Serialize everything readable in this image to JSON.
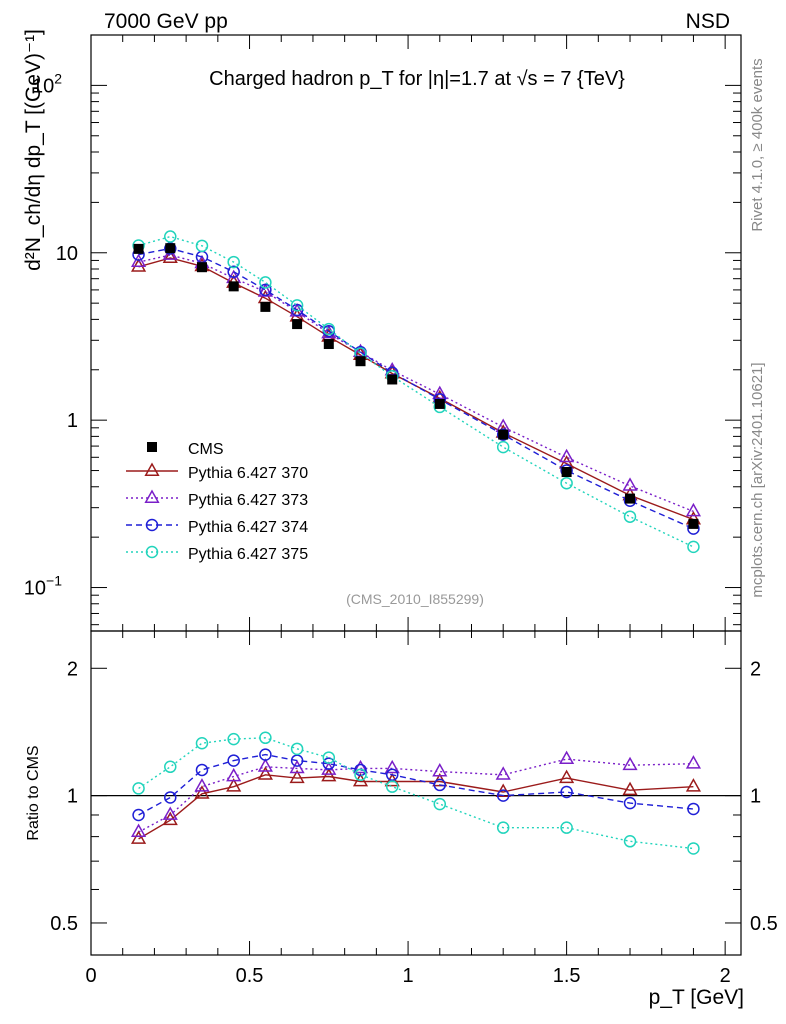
{
  "header": {
    "left": "7000 GeV pp",
    "right": "NSD",
    "side_top": "Rivet 4.1.0, ≥ 400k events",
    "side_bottom": "mcplots.cern.ch [arXiv:2401.10621]"
  },
  "chart_data": [
    {
      "type": "line",
      "panel": "main",
      "title": "Charged hadron p_T for |η|=1.7 at √s = 7 {TeV}",
      "watermark": "(CMS_2010_I855299)",
      "ylabel": "d²N_ch/dη dp_T [(GeV)⁻¹]",
      "yscale": "log",
      "ylim": [
        0.055,
        200
      ],
      "xlim": [
        0,
        2.05
      ],
      "yticks": [
        {
          "value": 0.1,
          "base": "10",
          "exp": "−1"
        },
        {
          "value": 1,
          "base": "1",
          "exp": ""
        },
        {
          "value": 10,
          "base": "10",
          "exp": ""
        },
        {
          "value": 100,
          "base": "10",
          "exp": "2"
        }
      ],
      "x": [
        0.15,
        0.25,
        0.35,
        0.45,
        0.55,
        0.65,
        0.75,
        0.85,
        0.95,
        1.1,
        1.3,
        1.5,
        1.7,
        1.9
      ],
      "series": [
        {
          "name": "CMS",
          "style": "data",
          "color": "#000000",
          "values": [
            10.55,
            10.65,
            8.2,
            6.3,
            4.75,
            3.75,
            2.85,
            2.25,
            1.75,
            1.25,
            0.82,
            0.49,
            0.34,
            0.24
          ]
        },
        {
          "name": "Pythia 6.427 370",
          "style": "solid",
          "marker": "triangle",
          "color": "#9b1b1b",
          "values": [
            8.25,
            9.3,
            8.3,
            6.6,
            5.35,
            4.15,
            3.15,
            2.45,
            1.9,
            1.35,
            0.84,
            0.55,
            0.355,
            0.255
          ]
        },
        {
          "name": "Pythia 6.427 373",
          "style": "dotted",
          "marker": "triangle",
          "color": "#7a1fc8",
          "values": [
            8.8,
            9.7,
            8.65,
            7.05,
            5.85,
            4.45,
            3.3,
            2.55,
            1.98,
            1.43,
            0.91,
            0.6,
            0.405,
            0.285
          ]
        },
        {
          "name": "Pythia 6.427 374",
          "style": "dashed",
          "marker": "circle",
          "color": "#1f1fd6",
          "values": [
            9.75,
            10.6,
            9.45,
            7.7,
            6.0,
            4.55,
            3.4,
            2.55,
            1.92,
            1.33,
            0.82,
            0.5,
            0.33,
            0.225
          ]
        },
        {
          "name": "Pythia 6.427 375",
          "style": "dotted",
          "marker": "circle",
          "color": "#22d4bc",
          "values": [
            11.05,
            12.5,
            11.0,
            8.8,
            6.65,
            4.85,
            3.5,
            2.5,
            1.83,
            1.2,
            0.69,
            0.42,
            0.265,
            0.175
          ]
        }
      ]
    },
    {
      "type": "line",
      "panel": "ratio",
      "xlabel": "p_T [GeV]",
      "ylabel": "Ratio to CMS",
      "ylim": [
        0.42,
        2.45
      ],
      "xlim": [
        0,
        2.05
      ],
      "yticks": [
        0.5,
        1,
        2
      ],
      "xticks": [
        0,
        0.5,
        1,
        1.5,
        2
      ],
      "reference": 1,
      "x": [
        0.15,
        0.25,
        0.35,
        0.45,
        0.55,
        0.65,
        0.75,
        0.85,
        0.95,
        1.1,
        1.3,
        1.5,
        1.7,
        1.9
      ],
      "series": [
        {
          "name": "Pythia 6.427 370",
          "values": [
            0.79,
            0.875,
            1.01,
            1.05,
            1.12,
            1.1,
            1.11,
            1.08,
            1.08,
            1.08,
            1.02,
            1.1,
            1.03,
            1.05
          ]
        },
        {
          "name": "Pythia 6.427 373",
          "values": [
            0.82,
            0.9,
            1.05,
            1.11,
            1.17,
            1.16,
            1.15,
            1.16,
            1.16,
            1.14,
            1.12,
            1.22,
            1.18,
            1.19
          ]
        },
        {
          "name": "Pythia 6.427 374",
          "values": [
            0.9,
            0.99,
            1.15,
            1.21,
            1.25,
            1.21,
            1.19,
            1.15,
            1.12,
            1.06,
            1.0,
            1.02,
            0.96,
            0.93
          ]
        },
        {
          "name": "Pythia 6.427 375",
          "values": [
            1.04,
            1.17,
            1.33,
            1.36,
            1.37,
            1.29,
            1.23,
            1.12,
            1.05,
            0.955,
            0.84,
            0.84,
            0.78,
            0.75
          ]
        }
      ]
    }
  ]
}
